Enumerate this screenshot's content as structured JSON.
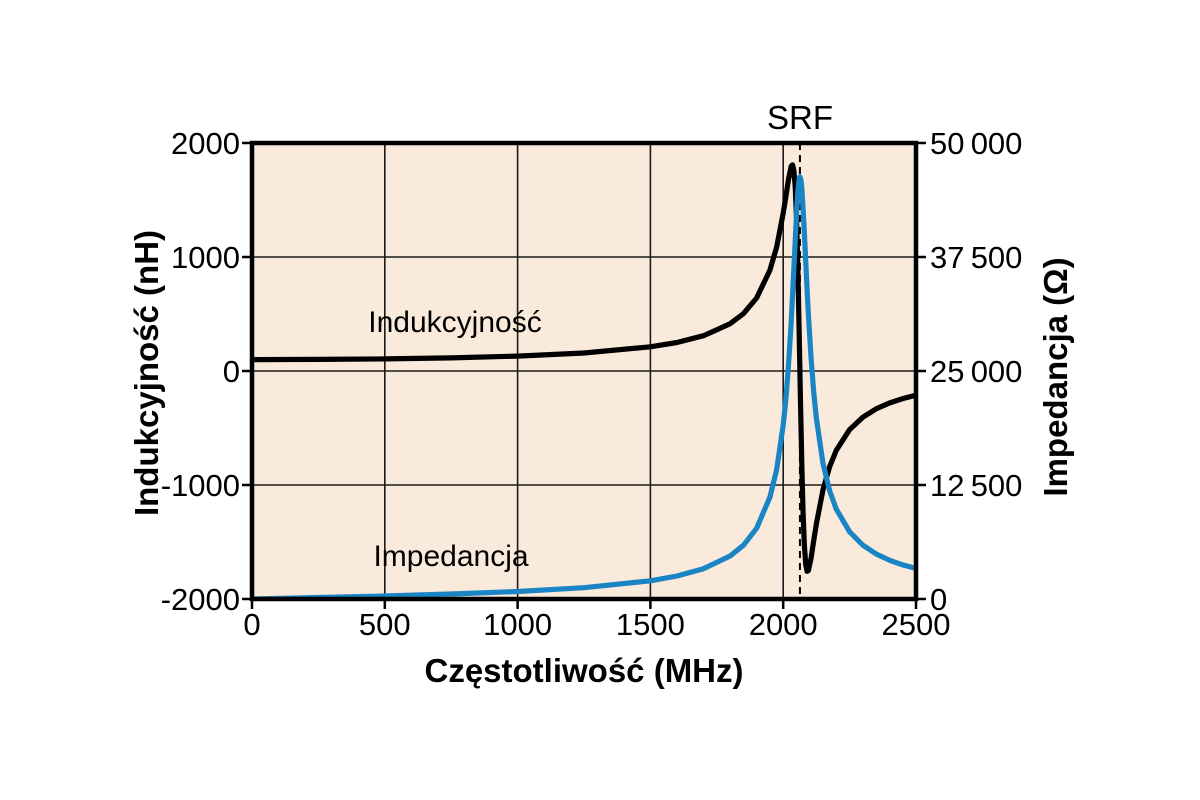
{
  "labels": {
    "srf": "SRF",
    "inductance_series": "Indukcyjność",
    "impedance_series": "Impedancja",
    "x_axis_title": "Częstotliwość (MHz)",
    "y_left_axis_title": "Indukcyjność (nH)",
    "y_right_axis_title": "Impedancja (Ω)"
  },
  "colors": {
    "plot_background": "#f9eadb",
    "inductance": "#000000",
    "impedance": "#1a85c4",
    "grid": "#1a1a1a",
    "border": "#000000"
  },
  "chart_data": {
    "type": "line",
    "title": "",
    "xlabel": "Częstotliwość (MHz)",
    "ylabel_left": "Indukcyjność (nH)",
    "ylabel_right": "Impedancja (Ω)",
    "grid": true,
    "x_range": [
      0,
      2500
    ],
    "y_left_range": [
      -2000,
      2000
    ],
    "y_right_range": [
      0,
      50000
    ],
    "x_ticks": [
      0,
      500,
      1000,
      1500,
      2000,
      2500
    ],
    "x_tick_labels": [
      "0",
      "500",
      "1000",
      "1500",
      "2000",
      "2500"
    ],
    "y_left_ticks": [
      2000,
      1000,
      0,
      -1000,
      -2000
    ],
    "y_left_tick_labels": [
      "2000",
      "1000",
      "0",
      "-1000",
      "-2000"
    ],
    "y_right_ticks": [
      50000,
      37500,
      25000,
      12500,
      0
    ],
    "y_right_tick_labels": [
      "50 000",
      "37 500",
      "25 000",
      "12 500",
      "0"
    ],
    "srf_mhz": 2063,
    "annotations": [
      {
        "text": "SRF",
        "x_mhz": 2063,
        "position": "above-plot"
      }
    ],
    "x": [
      0,
      250,
      500,
      750,
      1000,
      1250,
      1500,
      1600,
      1700,
      1800,
      1850,
      1900,
      1950,
      1975,
      2000,
      2010,
      2020,
      2030,
      2035,
      2040,
      2045,
      2050,
      2055,
      2060,
      2063,
      2066,
      2068,
      2070,
      2075,
      2080,
      2085,
      2090,
      2095,
      2105,
      2115,
      2125,
      2150,
      2175,
      2200,
      2250,
      2300,
      2350,
      2400,
      2450,
      2500
    ],
    "series": [
      {
        "name": "Indukcyjność",
        "axis": "left",
        "unit": "nH",
        "color": "#000000",
        "values": [
          100,
          102,
          106,
          115,
          131,
          158,
          212,
          250,
          310,
          415,
          503,
          640,
          884,
          1086,
          1383,
          1530,
          1682,
          1797,
          1809,
          1762,
          1621,
          1346,
          921,
          367,
          0,
          -366,
          -598,
          -813,
          -1255,
          -1536,
          -1701,
          -1757,
          -1750,
          -1640,
          -1488,
          -1340,
          -1041,
          -838,
          -696,
          -514,
          -405,
          -332,
          -281,
          -242,
          -212
        ]
      },
      {
        "name": "Impedancja",
        "axis": "right",
        "unit": "Ω",
        "color": "#1a85c4",
        "values": [
          0,
          159,
          334,
          543,
          821,
          1240,
          1998,
          2519,
          3320,
          4713,
          5888,
          7755,
          11160,
          14157,
          19063,
          21947,
          25642,
          30369,
          33250,
          36151,
          39243,
          42213,
          44626,
          46043,
          46292,
          46039,
          45628,
          45003,
          42767,
          40064,
          36904,
          33918,
          31150,
          26410,
          22689,
          19787,
          14855,
          11845,
          9842,
          7364,
          5899,
          4933,
          4249,
          3739,
          3344
        ]
      }
    ]
  }
}
